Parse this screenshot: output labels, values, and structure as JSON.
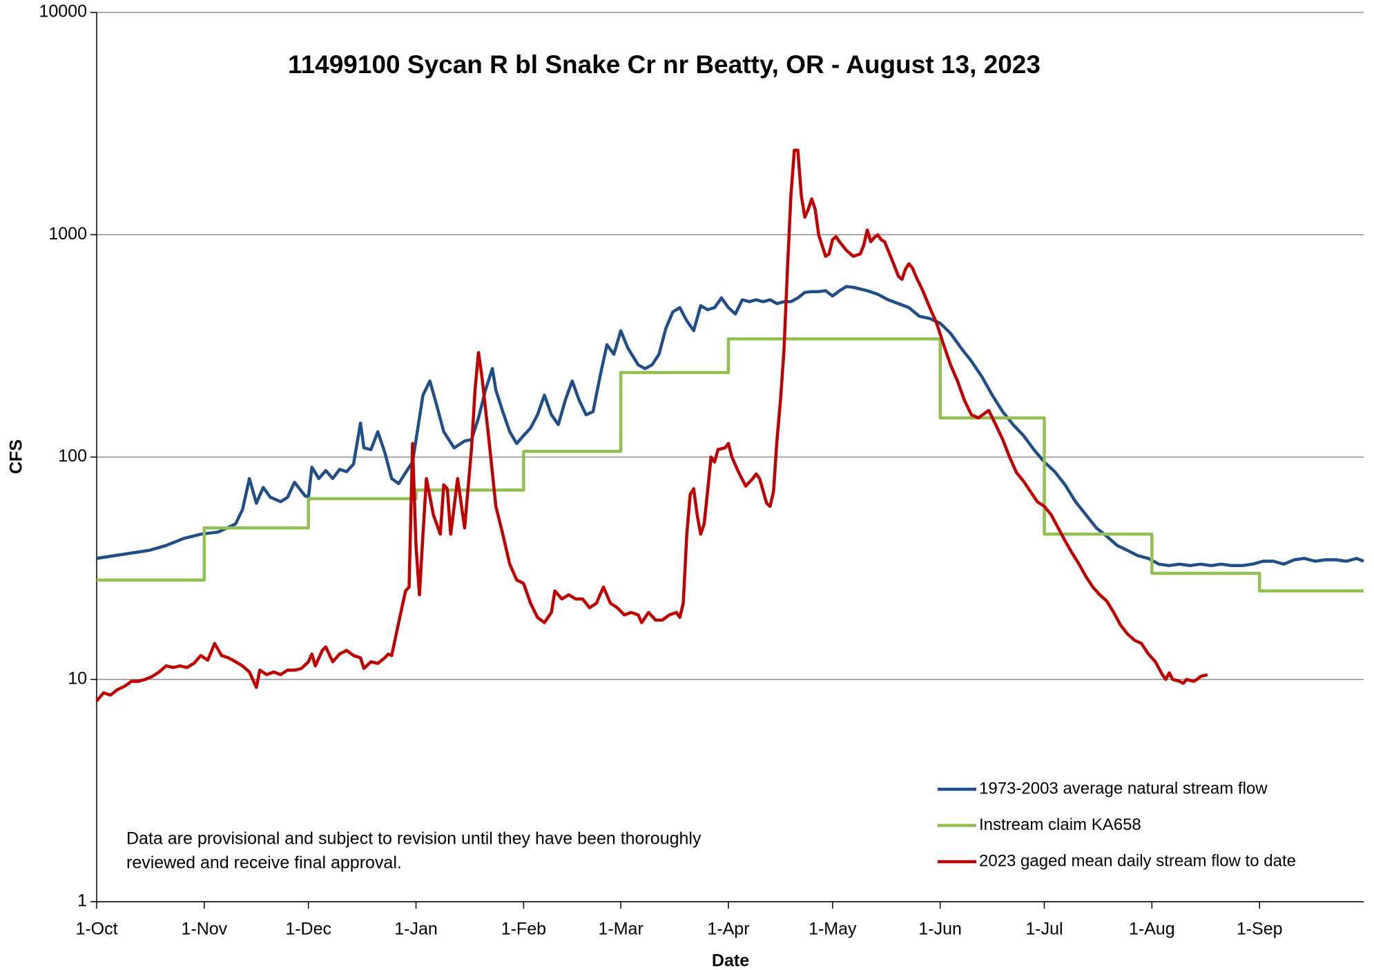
{
  "chart_data": {
    "type": "line",
    "title": "11499100 Sycan R bl Snake Cr nr Beatty, OR -  August 13, 2023",
    "x_label": "Date",
    "y_label": "CFS",
    "note": [
      "Data are provisional and subject to revision until they have been thoroughly",
      "reviewed and receive final approval."
    ],
    "log_y": true,
    "grid": true,
    "legend": "lower right",
    "xlim": [
      0,
      365
    ],
    "xticks": [
      {
        "value": 0,
        "label": "1-Oct"
      },
      {
        "value": 31,
        "label": "1-Nov"
      },
      {
        "value": 61,
        "label": "1-Dec"
      },
      {
        "value": 92,
        "label": "1-Jan"
      },
      {
        "value": 123,
        "label": "1-Feb"
      },
      {
        "value": 151,
        "label": "1-Mar"
      },
      {
        "value": 182,
        "label": "1-Apr"
      },
      {
        "value": 212,
        "label": "1-May"
      },
      {
        "value": 243,
        "label": "1-Jun"
      },
      {
        "value": 273,
        "label": "1-Jul"
      },
      {
        "value": 304,
        "label": "1-Aug"
      },
      {
        "value": 335,
        "label": "1-Sep"
      }
    ],
    "ylim": [
      1,
      10000
    ],
    "yticks": [
      1,
      10,
      100,
      1000,
      10000
    ],
    "series": [
      {
        "name": "1973-2003 average natural stream flow",
        "color": "#1f4e89",
        "x": [
          0,
          5,
          10,
          15,
          20,
          25,
          30,
          35,
          40,
          42,
          44,
          46,
          48,
          50,
          53,
          55,
          57,
          60,
          61,
          62,
          64,
          66,
          68,
          70,
          72,
          74,
          76,
          77,
          79,
          81,
          83,
          85,
          87,
          89,
          91,
          94,
          96,
          98,
          100,
          103,
          106,
          108,
          110,
          112,
          114,
          115,
          117,
          119,
          121,
          123,
          125,
          127,
          129,
          131,
          133,
          135,
          137,
          139,
          141,
          143,
          145,
          147,
          149,
          151,
          153,
          156,
          158,
          160,
          162,
          164,
          166,
          168,
          170,
          172,
          174,
          176,
          178,
          180,
          182,
          184,
          186,
          188,
          190,
          192,
          194,
          196,
          198,
          200,
          202,
          204,
          206,
          208,
          210,
          212,
          214,
          216,
          218,
          220,
          222,
          225,
          228,
          231,
          234,
          237,
          240,
          243,
          246,
          249,
          252,
          255,
          258,
          261,
          264,
          267,
          270,
          273,
          276,
          279,
          282,
          285,
          288,
          291,
          294,
          297,
          300,
          303,
          306,
          309,
          312,
          315,
          318,
          321,
          324,
          327,
          330,
          333,
          336,
          339,
          342,
          345,
          348,
          351,
          354,
          357,
          360,
          363,
          365
        ],
        "values": [
          35,
          36,
          37,
          38,
          40,
          43,
          45,
          46,
          50,
          58,
          80,
          62,
          73,
          66,
          63,
          66,
          77,
          67,
          66,
          90,
          80,
          87,
          80,
          88,
          86,
          93,
          142,
          110,
          108,
          130,
          105,
          80,
          76,
          85,
          95,
          190,
          220,
          170,
          130,
          110,
          118,
          120,
          150,
          200,
          250,
          200,
          160,
          130,
          115,
          125,
          135,
          155,
          190,
          155,
          140,
          180,
          220,
          180,
          155,
          160,
          230,
          320,
          290,
          370,
          310,
          260,
          250,
          260,
          290,
          380,
          450,
          470,
          410,
          370,
          480,
          460,
          470,
          520,
          470,
          440,
          510,
          500,
          510,
          500,
          510,
          490,
          500,
          500,
          520,
          550,
          555,
          555,
          560,
          530,
          560,
          585,
          580,
          570,
          560,
          540,
          510,
          490,
          470,
          430,
          420,
          400,
          360,
          310,
          270,
          230,
          190,
          160,
          140,
          125,
          108,
          95,
          86,
          75,
          63,
          55,
          48,
          44,
          40,
          38,
          36,
          35,
          33,
          32.5,
          33,
          32.5,
          33,
          32.5,
          33,
          32.5,
          32.5,
          33,
          34,
          34,
          33,
          34.5,
          35,
          34,
          34.5,
          34.5,
          34,
          35,
          34
        ]
      },
      {
        "name": "Instream claim KA658",
        "color": "#92c050",
        "x": [
          0,
          31,
          31,
          61,
          61,
          92,
          92,
          123,
          123,
          151,
          151,
          182,
          182,
          243,
          243,
          273,
          273,
          304,
          304,
          335,
          335,
          365
        ],
        "values": [
          28,
          28,
          48,
          48,
          65,
          65,
          71,
          71,
          106,
          106,
          240,
          240,
          340,
          340,
          150,
          150,
          45,
          45,
          30,
          30,
          25,
          25
        ]
      },
      {
        "name": "2023 gaged mean daily stream flow to date",
        "color": "#c00000",
        "x": [
          0,
          2,
          4,
          6,
          8,
          10,
          12,
          14,
          16,
          18,
          20,
          22,
          24,
          26,
          28,
          30,
          32,
          34,
          36,
          38,
          40,
          42,
          44,
          46,
          47,
          49,
          51,
          53,
          55,
          57,
          59,
          61,
          62,
          63,
          65,
          66,
          68,
          70,
          72,
          74,
          76,
          77,
          79,
          81,
          83,
          84,
          85,
          87,
          89,
          90,
          91,
          92,
          93,
          94,
          95,
          97,
          99,
          100,
          101,
          102,
          104,
          106,
          108,
          109,
          110,
          111,
          113,
          115,
          117,
          119,
          121,
          123,
          125,
          127,
          129,
          131,
          132,
          134,
          136,
          138,
          140,
          142,
          144,
          145,
          146,
          148,
          150,
          152,
          154,
          156,
          157,
          159,
          161,
          163,
          165,
          167,
          168,
          169,
          170,
          171,
          172,
          173,
          174,
          175,
          176,
          177,
          178,
          179,
          181,
          182,
          183,
          185,
          187,
          189,
          190,
          191,
          193,
          194,
          195,
          196,
          197,
          198,
          199,
          200,
          201,
          202,
          203,
          204,
          205,
          206,
          207,
          208,
          210,
          211,
          212,
          213,
          214,
          216,
          218,
          220,
          221,
          222,
          223,
          224,
          225,
          226,
          227,
          229,
          231,
          232,
          233,
          234,
          235,
          236,
          238,
          240,
          242,
          244,
          246,
          248,
          250,
          252,
          254,
          256,
          257,
          259,
          261,
          263,
          265,
          267,
          269,
          271,
          273,
          275,
          277,
          279,
          281,
          283,
          285,
          287,
          289,
          291,
          293,
          295,
          297,
          299,
          301,
          303,
          305,
          307,
          308,
          309,
          310,
          312,
          313,
          314,
          316,
          317,
          318,
          320
        ],
        "values": [
          8,
          8.7,
          8.5,
          9,
          9.3,
          9.8,
          9.8,
          10,
          10.3,
          10.8,
          11.5,
          11.3,
          11.5,
          11.3,
          11.8,
          12.8,
          12.2,
          14.5,
          12.8,
          12.5,
          12,
          11.5,
          10.8,
          9.2,
          11,
          10.5,
          10.8,
          10.5,
          11,
          11,
          11.2,
          12,
          13,
          11.5,
          13.5,
          14,
          12,
          13,
          13.5,
          12.8,
          12.5,
          11.2,
          12,
          11.8,
          12.5,
          13,
          12.8,
          18,
          25,
          26,
          115,
          40,
          24,
          45,
          80,
          55,
          45,
          75,
          72,
          45,
          80,
          48,
          110,
          200,
          295,
          230,
          120,
          60,
          45,
          33,
          28,
          27,
          22,
          19,
          18,
          20,
          25,
          23,
          24,
          23,
          23,
          21,
          22,
          24,
          26,
          22,
          21,
          19.5,
          20,
          19.5,
          18,
          20,
          18.5,
          18.5,
          19.5,
          20,
          19,
          22,
          45,
          68,
          72,
          55,
          45,
          50,
          70,
          100,
          95,
          108,
          110,
          115,
          100,
          85,
          74,
          80,
          84,
          80,
          62,
          60,
          70,
          120,
          180,
          300,
          700,
          1500,
          2400,
          2400,
          1500,
          1200,
          1300,
          1450,
          1300,
          1000,
          800,
          820,
          950,
          980,
          930,
          850,
          800,
          820,
          900,
          1050,
          930,
          970,
          1000,
          950,
          930,
          780,
          650,
          630,
          700,
          740,
          710,
          650,
          560,
          470,
          400,
          320,
          260,
          220,
          180,
          155,
          150,
          158,
          162,
          140,
          120,
          100,
          85,
          78,
          70,
          63,
          60,
          55,
          48,
          42,
          37,
          33,
          29,
          26,
          24,
          22.5,
          20,
          17.5,
          16,
          15,
          14.5,
          13,
          12,
          10.5,
          10,
          10.7,
          10,
          9.8,
          9.6,
          10,
          9.8,
          10,
          10.3,
          10.5
        ]
      }
    ]
  }
}
